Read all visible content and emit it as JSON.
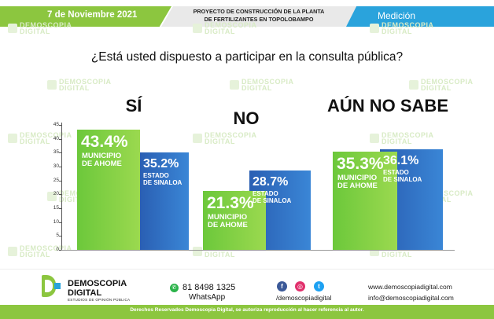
{
  "header": {
    "date": "7 de Noviembre 2021",
    "project_line1": "PROYECTO DE CONSTRUCCIÓN DE LA PLANTA",
    "project_line2": "DE FERTILIZANTES EN TOPOLOBAMPO",
    "section": "Medición"
  },
  "watermark": {
    "line1": "DEMOSCOPIA",
    "line2": "DIGITAL"
  },
  "question": "¿Está usted dispuesto a participar en la consulta pública?",
  "chart_data": {
    "type": "bar",
    "title": "",
    "xlabel": "",
    "ylabel": "",
    "ylim": [
      0,
      45
    ],
    "yticks": [
      "0",
      "5",
      "10",
      "15",
      "20",
      "25",
      "30",
      "35",
      "40",
      "45"
    ],
    "categories": [
      "SÍ",
      "NO",
      "AÚN NO SABE"
    ],
    "series": [
      {
        "name": "MUNICIPIO DE AHOME",
        "color": "#7ccd3f",
        "values": [
          43.4,
          21.3,
          35.3
        ],
        "labels": [
          "43.4%",
          "21.3%",
          "35.3%"
        ]
      },
      {
        "name": "ESTADO DE SINALOA",
        "color": "#2f6fc2",
        "values": [
          35.2,
          28.7,
          36.1
        ],
        "labels": [
          "35.2%",
          "28.7%",
          "36.1%"
        ]
      }
    ],
    "series_label_lines": [
      [
        "MUNICIPIO",
        "DE AHOME"
      ],
      [
        "ESTADO",
        "DE SINALOA"
      ]
    ],
    "grid": false,
    "legend": "none"
  },
  "footer": {
    "brand_line1": "DEMOSCOPIA",
    "brand_line2": "DIGITAL",
    "brand_tagline": "ESTUDIOS DE OPINIÓN PÚBLICA",
    "phone": "81 8498 1325",
    "whatsapp": "WhatsApp",
    "social_handle": "/demoscopiadigital",
    "website": "www.demoscopiadigital.com",
    "email": "info@demoscopiadigital.com",
    "rights": "Derechos Reservados Demoscopia Digital, se autoriza reproducción al hacer referencia al autor."
  },
  "icons": [
    "whatsapp-icon",
    "facebook-icon",
    "instagram-icon",
    "twitter-icon"
  ],
  "colors": {
    "green": "#8cc63f",
    "blue": "#2aa3dc",
    "bar_green": "#7ccd3f",
    "bar_blue": "#2f6fc2"
  }
}
